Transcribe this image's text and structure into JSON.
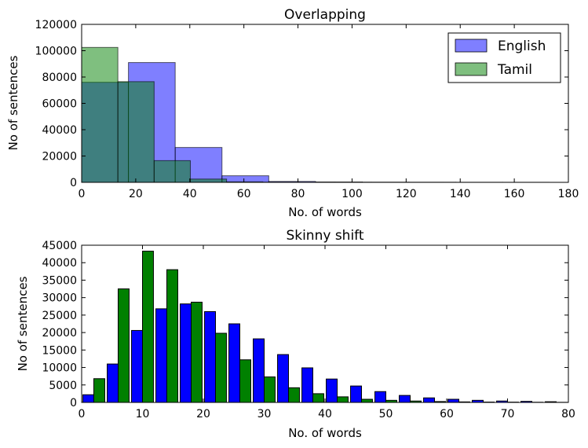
{
  "colors": {
    "english_overlap": "#0000ff",
    "tamil_overlap": "#008000",
    "english_skinny": "#0000ff",
    "tamil_skinny": "#008000",
    "overlap_alpha": 0.5
  },
  "chart_data": [
    {
      "type": "bar",
      "subtype": "overlapping-histogram",
      "title": "Overlapping",
      "xlabel": "No. of words",
      "ylabel": "No of sentences",
      "xlim": [
        0,
        180
      ],
      "ylim": [
        0,
        120000
      ],
      "xticks": [
        0,
        20,
        40,
        60,
        80,
        100,
        120,
        140,
        160,
        180
      ],
      "yticks": [
        0,
        20000,
        40000,
        60000,
        80000,
        100000,
        120000
      ],
      "legend_position": "top-right",
      "grid": false,
      "series": [
        {
          "name": "English",
          "bins": [
            {
              "x0": 0,
              "x1": 17.3,
              "value": 76000
            },
            {
              "x0": 17.3,
              "x1": 34.6,
              "value": 91000
            },
            {
              "x0": 34.6,
              "x1": 51.9,
              "value": 26500
            },
            {
              "x0": 51.9,
              "x1": 69.2,
              "value": 5000
            },
            {
              "x0": 69.2,
              "x1": 86.5,
              "value": 700
            },
            {
              "x0": 86.5,
              "x1": 103.8,
              "value": 300
            },
            {
              "x0": 103.8,
              "x1": 121.1,
              "value": 150
            },
            {
              "x0": 121.1,
              "x1": 138.4,
              "value": 100
            },
            {
              "x0": 138.4,
              "x1": 155.7,
              "value": 60
            },
            {
              "x0": 155.7,
              "x1": 173,
              "value": 40
            }
          ]
        },
        {
          "name": "Tamil",
          "bins": [
            {
              "x0": 0,
              "x1": 13.4,
              "value": 102500
            },
            {
              "x0": 13.4,
              "x1": 26.8,
              "value": 76500
            },
            {
              "x0": 26.8,
              "x1": 40.2,
              "value": 16500
            },
            {
              "x0": 40.2,
              "x1": 53.6,
              "value": 2500
            },
            {
              "x0": 53.6,
              "x1": 67,
              "value": 400
            },
            {
              "x0": 67,
              "x1": 80.4,
              "value": 150
            },
            {
              "x0": 80.4,
              "x1": 93.8,
              "value": 80
            },
            {
              "x0": 93.8,
              "x1": 107.2,
              "value": 40
            },
            {
              "x0": 107.2,
              "x1": 120.6,
              "value": 20
            },
            {
              "x0": 120.6,
              "x1": 134,
              "value": 10
            }
          ]
        }
      ]
    },
    {
      "type": "bar",
      "subtype": "side-by-side-histogram",
      "title": "Skinny shift",
      "xlabel": "No. of words",
      "ylabel": "No of sentences",
      "xlim": [
        0,
        80
      ],
      "ylim": [
        0,
        45000
      ],
      "xticks": [
        0,
        10,
        20,
        30,
        40,
        50,
        60,
        70,
        80
      ],
      "yticks": [
        0,
        5000,
        10000,
        15000,
        20000,
        25000,
        30000,
        35000,
        40000,
        45000
      ],
      "grid": false,
      "bin_starts": [
        0,
        4,
        8,
        12,
        16,
        20,
        24,
        28,
        32,
        36,
        40,
        44,
        48,
        52,
        56,
        60,
        64,
        68,
        72,
        76
      ],
      "bin_width": 4,
      "series": [
        {
          "values": [
            2200,
            11000,
            20600,
            26800,
            28200,
            26000,
            22500,
            18200,
            13700,
            9900,
            6700,
            4700,
            3100,
            2000,
            1300,
            900,
            600,
            400,
            300,
            200
          ]
        },
        {
          "values": [
            6800,
            32500,
            43300,
            38000,
            28700,
            19800,
            12200,
            7300,
            4200,
            2500,
            1600,
            900,
            600,
            400,
            250,
            150,
            100,
            80,
            50,
            30
          ]
        }
      ]
    }
  ]
}
